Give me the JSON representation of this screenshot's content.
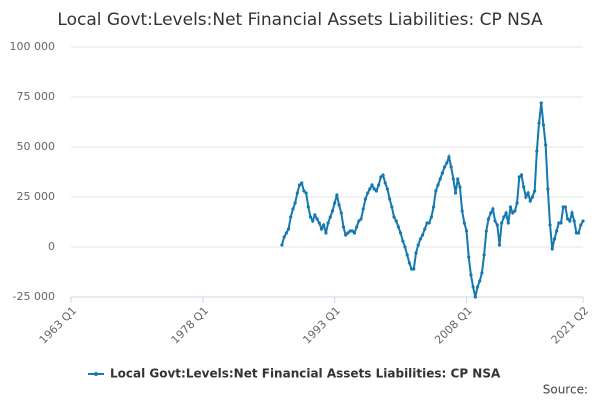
{
  "chart_data": {
    "type": "line",
    "title": "Local Govt:Levels:Net Financial Assets Liabilities: CP NSA",
    "source": "Source:",
    "x": [
      1987,
      1987.25,
      1987.5,
      1987.75,
      1988,
      1988.25,
      1988.5,
      1988.75,
      1989,
      1989.25,
      1989.5,
      1989.75,
      1990,
      1990.25,
      1990.5,
      1990.75,
      1991,
      1991.25,
      1991.5,
      1991.75,
      1992,
      1992.25,
      1992.5,
      1992.75,
      1993,
      1993.25,
      1993.5,
      1993.75,
      1994,
      1994.25,
      1994.5,
      1994.75,
      1995,
      1995.25,
      1995.5,
      1995.75,
      1996,
      1996.25,
      1996.5,
      1996.75,
      1997,
      1997.25,
      1997.5,
      1997.75,
      1998,
      1998.25,
      1998.5,
      1998.75,
      1999,
      1999.25,
      1999.5,
      1999.75,
      2000,
      2000.25,
      2000.5,
      2000.75,
      2001,
      2001.25,
      2001.5,
      2001.75,
      2002,
      2002.25,
      2002.5,
      2002.75,
      2003,
      2003.25,
      2003.5,
      2003.75,
      2004,
      2004.25,
      2004.5,
      2004.75,
      2005,
      2005.25,
      2005.5,
      2005.75,
      2006,
      2006.25,
      2006.5,
      2006.75,
      2007,
      2007.25,
      2007.5,
      2007.75,
      2008,
      2008.25,
      2008.5,
      2008.75,
      2009,
      2009.25,
      2009.5,
      2009.75,
      2010,
      2010.25,
      2010.5,
      2010.75,
      2011,
      2011.25,
      2011.5,
      2011.75,
      2012,
      2012.25,
      2012.5,
      2012.75,
      2013,
      2013.25,
      2013.5,
      2013.75,
      2014,
      2014.25,
      2014.5,
      2014.75,
      2015,
      2015.25,
      2015.5,
      2015.75,
      2016,
      2016.25,
      2016.5,
      2016.75,
      2017,
      2017.25,
      2017.5,
      2017.75,
      2018,
      2018.25,
      2018.5,
      2018.75,
      2019,
      2019.25,
      2019.5,
      2019.75,
      2020,
      2020.25,
      2020.5,
      2020.75,
      2021,
      2021.25
    ],
    "series": [
      {
        "name": "Local Govt:Levels:Net Financial Assets Liabilities: CP NSA",
        "color": "#1579b0",
        "values": [
          1000,
          5000,
          7000,
          9000,
          15000,
          19000,
          22000,
          27000,
          31000,
          32000,
          28000,
          27000,
          20000,
          15000,
          13000,
          16000,
          14000,
          12000,
          9000,
          11000,
          7000,
          12000,
          15000,
          18000,
          22000,
          26000,
          21000,
          17000,
          10000,
          6000,
          7000,
          8000,
          8000,
          7000,
          10000,
          13000,
          14000,
          19000,
          24000,
          27000,
          29000,
          31000,
          29000,
          28000,
          31000,
          35000,
          36000,
          32000,
          29000,
          24000,
          20000,
          15000,
          13000,
          10000,
          7000,
          3000,
          0,
          -4000,
          -8000,
          -11000,
          -11000,
          -3000,
          1000,
          4000,
          6000,
          9000,
          12000,
          12000,
          15000,
          20000,
          28000,
          31000,
          34000,
          37000,
          40000,
          42000,
          45000,
          40000,
          34000,
          27000,
          34000,
          30000,
          18000,
          12000,
          8000,
          -5000,
          -14000,
          -20000,
          -25000,
          -20000,
          -17000,
          -13000,
          -4000,
          8000,
          14000,
          17000,
          19000,
          13000,
          11000,
          1000,
          12000,
          15000,
          17000,
          12000,
          20000,
          17000,
          18000,
          22000,
          35000,
          36000,
          30000,
          25000,
          27000,
          23000,
          25000,
          28000,
          48000,
          62000,
          72000,
          61000,
          51000,
          29000,
          11000,
          -1000,
          4000,
          8000,
          12000,
          12000,
          20000,
          20000,
          14000,
          13000,
          17000,
          13000,
          7000,
          7000,
          11000,
          13000
        ]
      }
    ],
    "xlim": [
      1963,
      2021.25
    ],
    "xticks": [
      {
        "value": 1963,
        "label": "1963 Q1"
      },
      {
        "value": 1978,
        "label": "1978 Q1"
      },
      {
        "value": 1993,
        "label": "1993 Q1"
      },
      {
        "value": 2008,
        "label": "2008 Q1"
      },
      {
        "value": 2021.25,
        "label": "2021 Q2"
      }
    ],
    "ylim": [
      -25000,
      100000
    ],
    "yticks": [
      {
        "value": -25000,
        "label": "-25 000"
      },
      0,
      {
        "value": 25000,
        "label": "25 000"
      },
      {
        "value": 50000,
        "label": "50 000"
      },
      {
        "value": 75000,
        "label": "75 000"
      },
      {
        "value": 100000,
        "label": "100 000"
      }
    ],
    "grid": true,
    "legend": "bottom"
  }
}
